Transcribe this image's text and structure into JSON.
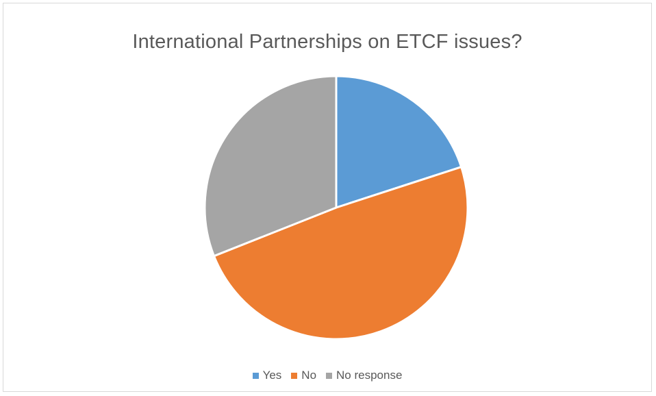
{
  "chart_data": {
    "type": "pie",
    "title": "International Partnerships on ETCF issues?",
    "categories": [
      "Yes",
      "No",
      "No response"
    ],
    "values": [
      20,
      49,
      31
    ],
    "colors": [
      "#5b9bd5",
      "#ed7d31",
      "#a5a5a5"
    ],
    "start_angle_deg": 0,
    "direction": "clockwise",
    "legend_position": "bottom"
  }
}
